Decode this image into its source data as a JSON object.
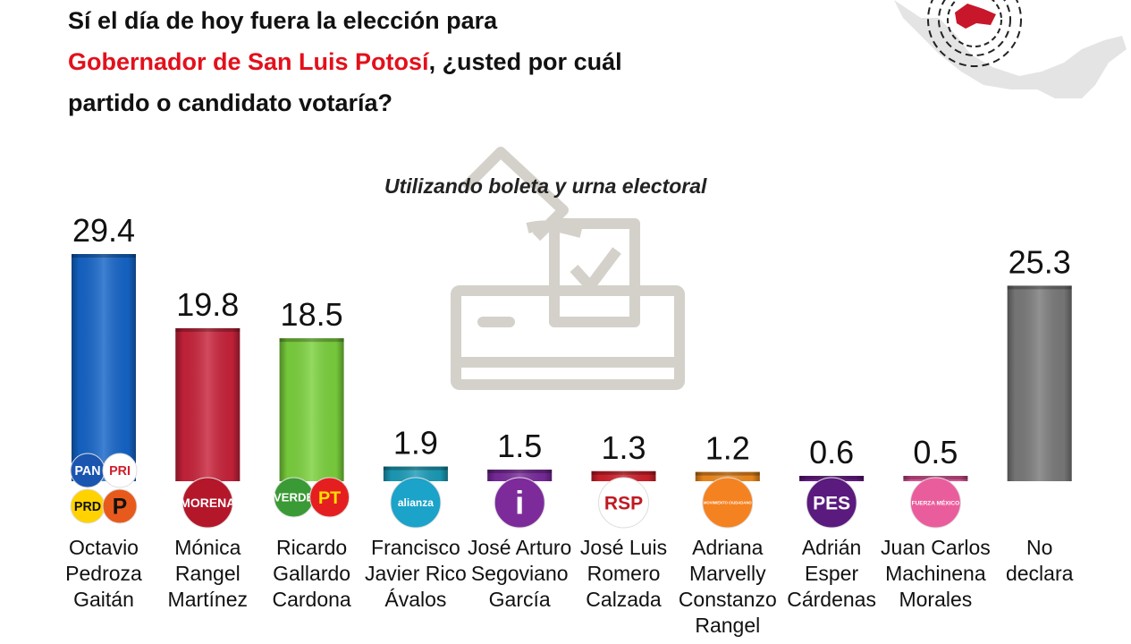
{
  "question": {
    "line1": "Sí el día de hoy fuera la elección para",
    "line2_highlight": "Gobernador de San Luis Potosí",
    "line2_rest": ", ¿usted por cuál",
    "line3": "partido o candidato votaría?"
  },
  "subtitle": "Utilizando boleta y urna electoral",
  "colors": {
    "highlight": "#e3101b"
  },
  "chart_data": {
    "type": "bar",
    "title": "",
    "xlabel": "",
    "ylabel": "",
    "ylim": [
      0,
      32
    ],
    "grid": false,
    "legend": "none",
    "categories": [
      [
        "Octavio",
        "Pedroza",
        "Gaitán"
      ],
      [
        "Mónica",
        "Rangel",
        "Martínez"
      ],
      [
        "Ricardo",
        "Gallardo",
        "Cardona"
      ],
      [
        "Francisco",
        "Javier Rico",
        "Ávalos"
      ],
      [
        "José Arturo",
        "Segoviano",
        "García"
      ],
      [
        "José Luis",
        "Romero",
        "Calzada"
      ],
      [
        "Adriana",
        "Marvelly",
        "Constanzo",
        "Rangel"
      ],
      [
        "Adrián",
        "Esper",
        "Cárdenas"
      ],
      [
        "Juan Carlos",
        "Machinena",
        "Morales"
      ],
      [
        "No",
        "declara"
      ]
    ],
    "values": [
      29.4,
      19.8,
      18.5,
      1.9,
      1.5,
      1.3,
      1.2,
      0.6,
      0.5,
      25.3
    ],
    "value_labels": [
      "29.4",
      "19.8",
      "18.5",
      "1.9",
      "1.5",
      "1.3",
      "1.2",
      "0.6",
      "0.5",
      "25.3"
    ],
    "bar_colors": [
      "#1565c8",
      "#c8223a",
      "#7bd13d",
      "#1b9cb8",
      "#7a2a9c",
      "#d0202a",
      "#f08a1c",
      "#6a1b8a",
      "#e0559a",
      "#7a7a7a"
    ],
    "party_logos": [
      [
        {
          "label": "PAN",
          "bg": "#1a56b0",
          "fg": "#ffffff",
          "icon": "pan-logo"
        },
        {
          "label": "PRI",
          "bg": "#ffffff",
          "fg": "#d01e2a",
          "icon": "pri-logo"
        },
        {
          "label": "PRD",
          "bg": "#ffd200",
          "fg": "#111111",
          "icon": "prd-logo"
        },
        {
          "label": "P",
          "bg": "#e85a1c",
          "fg": "#111111",
          "icon": "pcp-logo"
        }
      ],
      [
        {
          "label": "MORENA",
          "bg": "#b5172a",
          "fg": "#ffffff",
          "icon": "morena-logo"
        }
      ],
      [
        {
          "label": "VERDE",
          "bg": "#3a9a35",
          "fg": "#ffffff",
          "icon": "verde-logo"
        },
        {
          "label": "PT",
          "bg": "#e51f20",
          "fg": "#ffe000",
          "icon": "pt-logo"
        }
      ],
      [
        {
          "label": "alianza",
          "bg": "#1ba3c9",
          "fg": "#ffffff",
          "icon": "nueva-alianza-logo"
        }
      ],
      [
        {
          "label": "i",
          "bg": "#7d2b9b",
          "fg": "#ffffff",
          "icon": "independiente-logo"
        }
      ],
      [
        {
          "label": "RSP",
          "bg": "#ffffff",
          "fg": "#c01922",
          "icon": "rsp-logo"
        }
      ],
      [
        {
          "label": "MOVIMIENTO CIUDADANO",
          "bg": "#f58220",
          "fg": "#ffffff",
          "icon": "movimiento-ciudadano-logo"
        }
      ],
      [
        {
          "label": "PES",
          "bg": "#5a1a7e",
          "fg": "#ffffff",
          "icon": "pes-logo"
        }
      ],
      [
        {
          "label": "FUERZA MÉXICO",
          "bg": "#ea5d9d",
          "fg": "#ffffff",
          "icon": "fuerza-mexico-logo"
        }
      ],
      []
    ]
  }
}
